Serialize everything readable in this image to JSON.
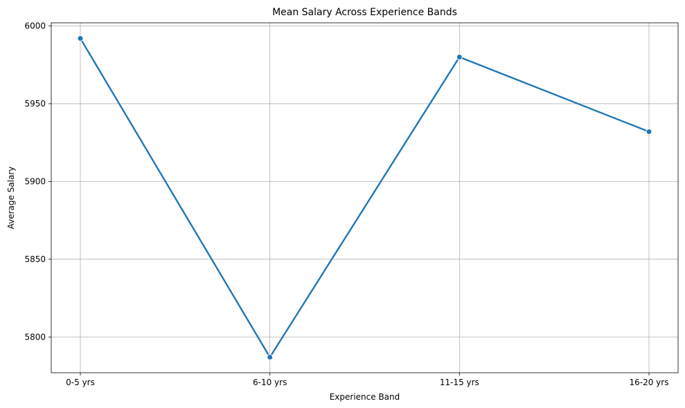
{
  "chart_data": {
    "type": "line",
    "title": "Mean Salary Across Experience Bands",
    "xlabel": "Experience Band",
    "ylabel": "Average Salary",
    "categories": [
      "0-5 yrs",
      "6-10 yrs",
      "11-15 yrs",
      "16-20 yrs"
    ],
    "series": [
      {
        "name": "Average Salary",
        "values": [
          5992,
          5787,
          5980,
          5932
        ]
      }
    ],
    "ylim": [
      5777,
      6002
    ],
    "yticks": [
      5800,
      5850,
      5900,
      5950,
      6000
    ],
    "grid": true,
    "line_color": "#1f77b4",
    "marker": "circle"
  }
}
